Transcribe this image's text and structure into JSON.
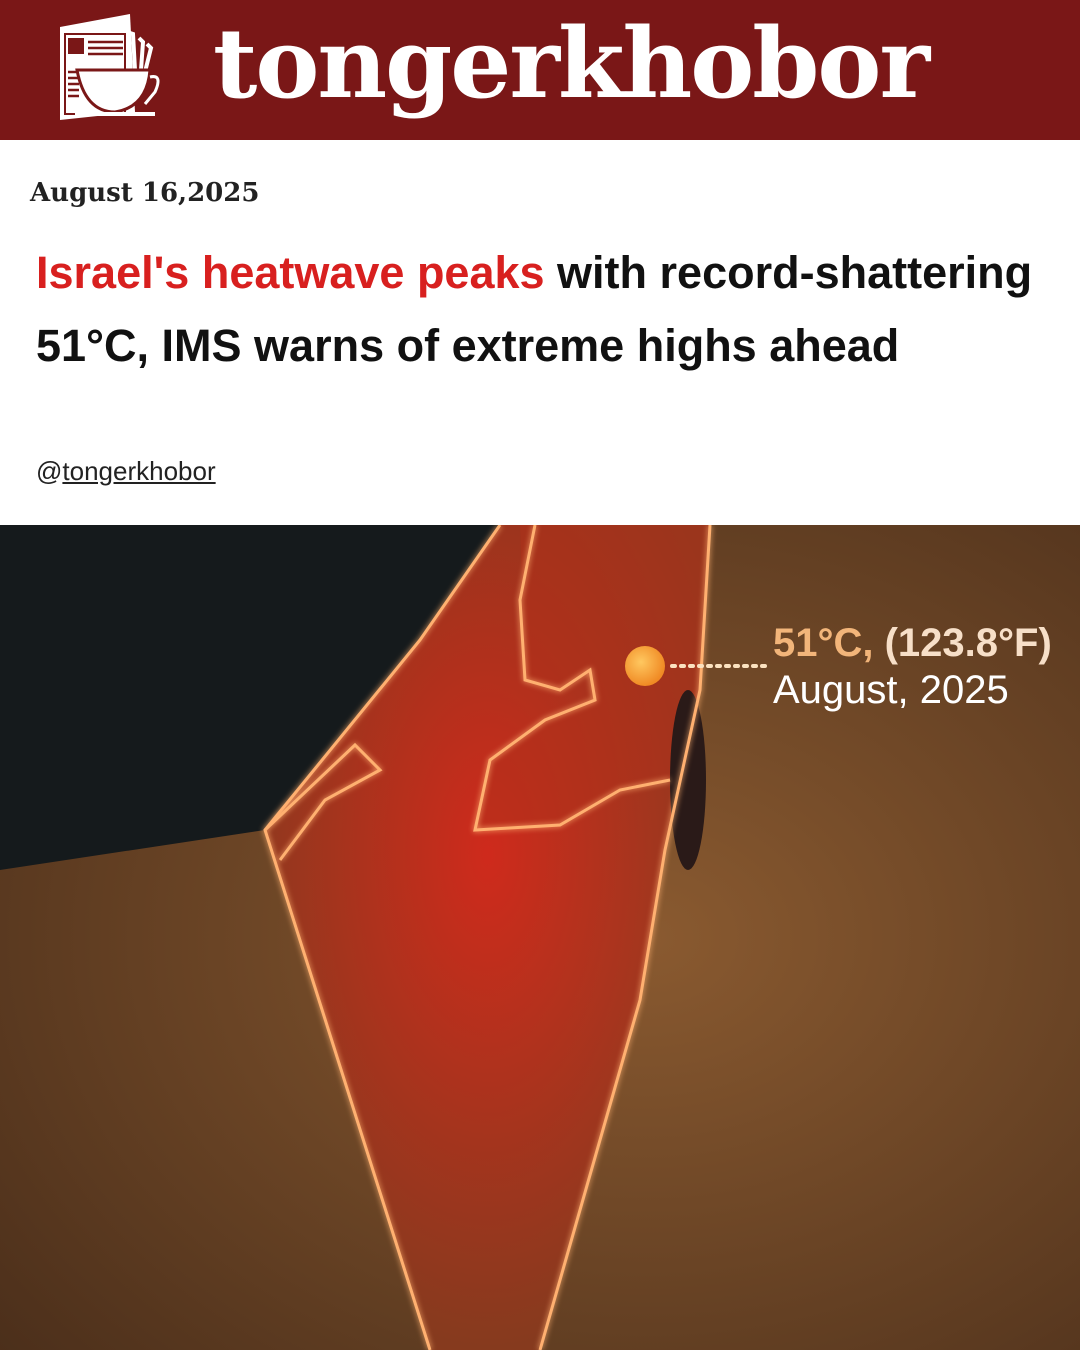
{
  "header": {
    "brand": "tongerkhobor",
    "logo_icon": "newspaper-coffee-cup-icon",
    "background": "#7a1717"
  },
  "article": {
    "date": "August 16,2025",
    "headline_highlight": "Israel's heatwave peaks",
    "headline_rest": " with record-shattering 51°C, IMS warns of extreme highs ahead",
    "highlight_color": "#d8201f",
    "handle_prefix": "@",
    "handle": "tongerkhobor"
  },
  "map": {
    "temp_c": "51°C,",
    "temp_f": " (123.8°F)",
    "period": "August, 2025",
    "marker_color": "#f7a33a"
  }
}
